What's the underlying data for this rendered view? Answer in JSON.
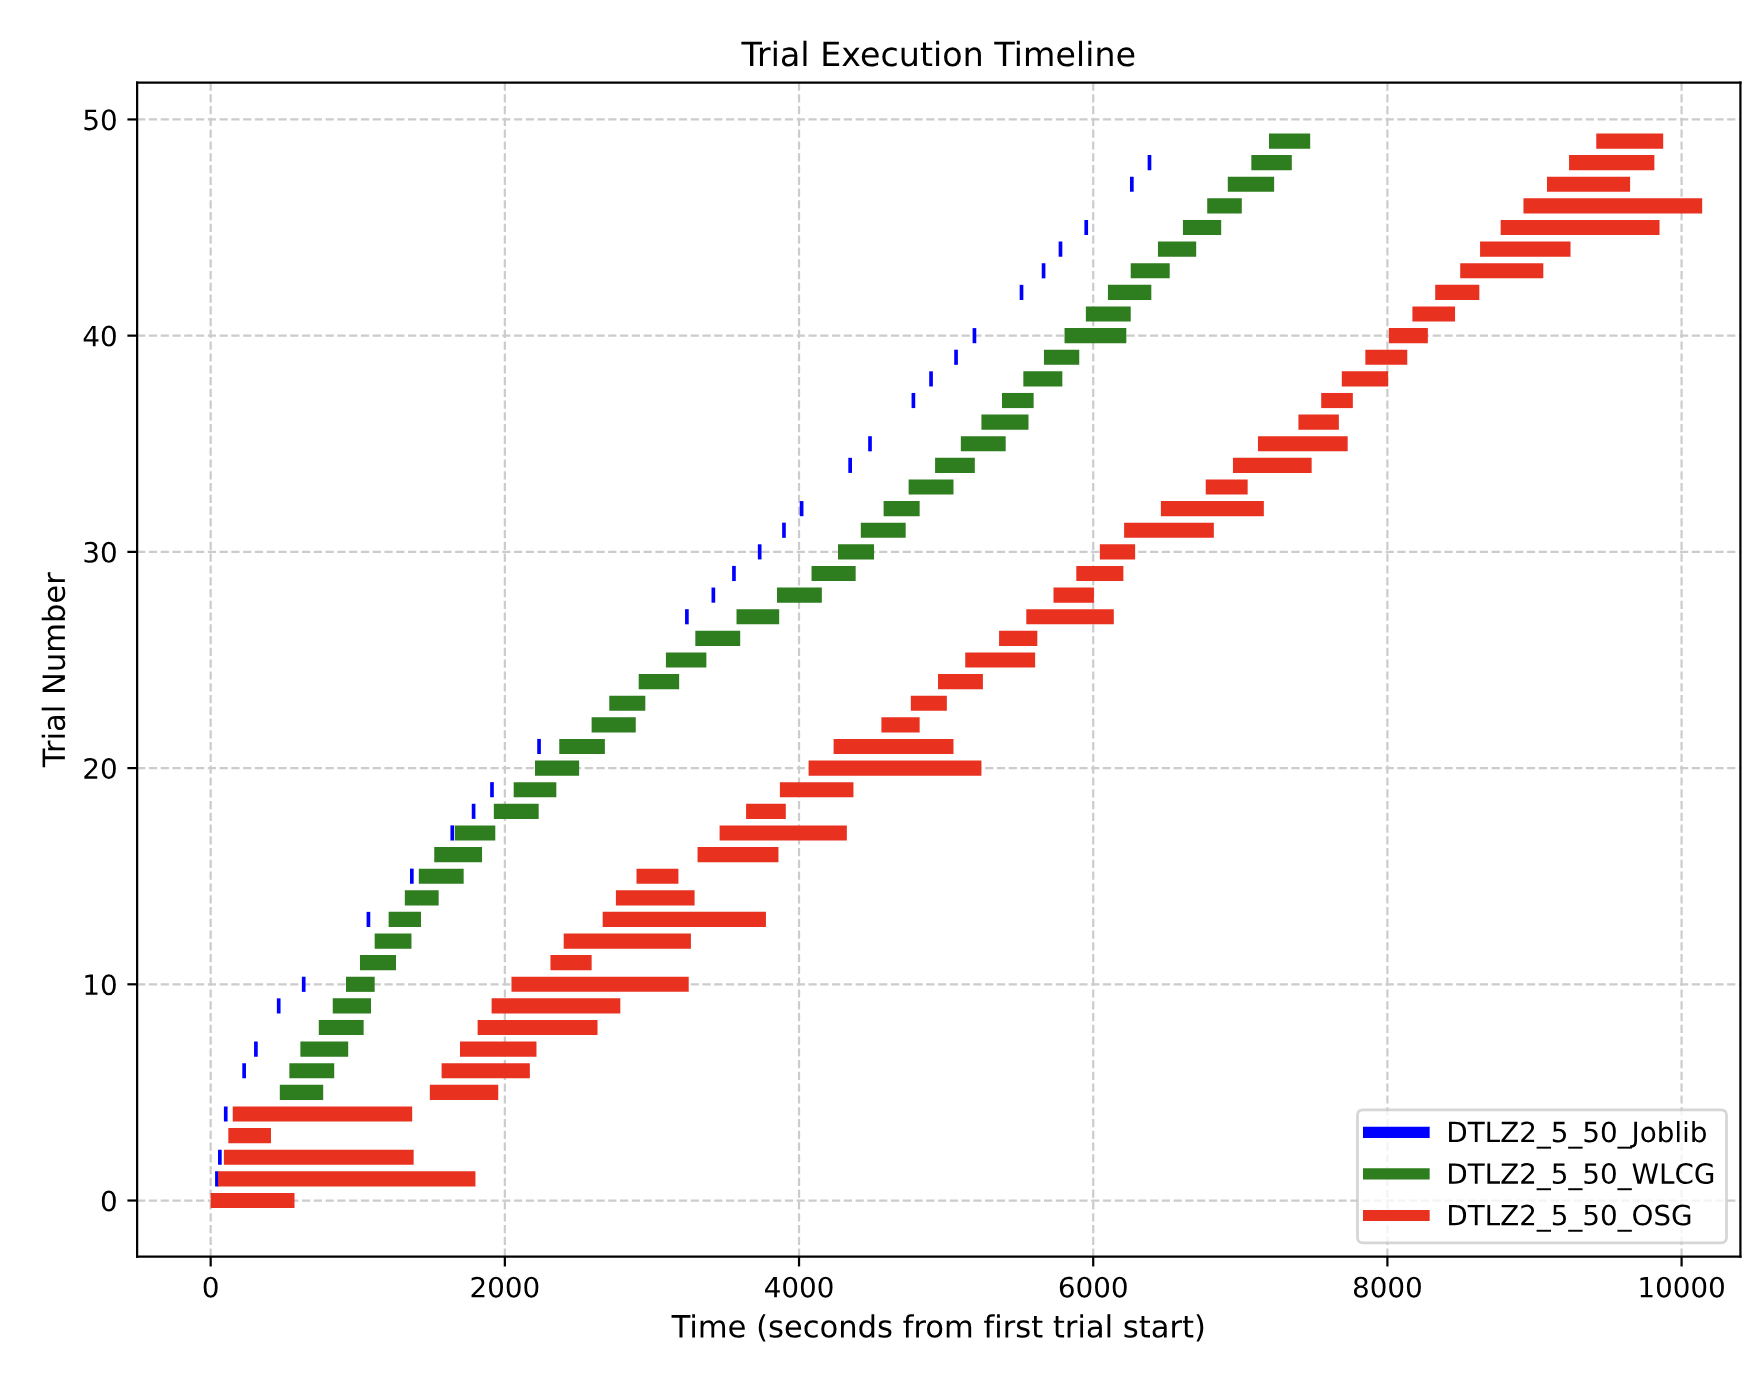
{
  "chart_data": {
    "type": "bar",
    "orientation": "horizontal",
    "title": "Trial Execution Timeline",
    "xlabel": "Time (seconds from first trial start)",
    "ylabel": "Trial Number",
    "x": [
      0,
      1,
      2,
      3,
      4,
      5,
      6,
      7,
      8,
      9,
      10,
      11,
      12,
      13,
      14,
      15,
      16,
      17,
      18,
      19,
      20,
      21,
      22,
      23,
      24,
      25,
      26,
      27,
      28,
      29,
      30,
      31,
      32,
      33,
      34,
      35,
      36,
      37,
      38,
      39,
      40,
      41,
      42,
      43,
      44,
      45,
      46,
      47,
      48,
      49
    ],
    "xlim": [
      -500,
      10400
    ],
    "xticks": [
      0,
      2000,
      4000,
      6000,
      8000,
      10000
    ],
    "ylim": [
      -2.6,
      51.7
    ],
    "yticks": [
      0,
      10,
      20,
      30,
      40,
      50
    ],
    "grid": true,
    "legend": "bottom right",
    "series": [
      {
        "name": "DTLZ2_5_50_Joblib",
        "color": "#0000ff",
        "base": [
          null,
          30,
          50,
          null,
          90,
          null,
          215,
          295,
          null,
          450,
          620,
          null,
          null,
          1060,
          null,
          1355,
          null,
          1630,
          1775,
          1900,
          null,
          2220,
          null,
          null,
          null,
          null,
          null,
          3225,
          3405,
          3545,
          3720,
          3885,
          4005,
          null,
          4335,
          4470,
          null,
          4765,
          4885,
          5055,
          5180,
          null,
          5500,
          5650,
          5765,
          5940,
          null,
          6250,
          6370,
          null
        ],
        "values": [
          null,
          25,
          25,
          null,
          25,
          null,
          25,
          25,
          null,
          25,
          25,
          null,
          null,
          25,
          null,
          25,
          null,
          25,
          25,
          25,
          null,
          25,
          null,
          null,
          null,
          null,
          null,
          25,
          25,
          25,
          25,
          25,
          25,
          null,
          25,
          25,
          null,
          25,
          25,
          25,
          25,
          null,
          25,
          25,
          25,
          25,
          null,
          25,
          25,
          null
        ]
      },
      {
        "name": "DTLZ2_5_50_WLCG",
        "color": "#2e7d1e",
        "base": [
          null,
          null,
          null,
          null,
          null,
          470,
          535,
          610,
          735,
          830,
          920,
          1015,
          1115,
          1210,
          1320,
          1415,
          1520,
          1660,
          1925,
          2060,
          2205,
          2370,
          2590,
          2710,
          2910,
          3095,
          3295,
          3575,
          3850,
          4085,
          4265,
          4420,
          4575,
          4745,
          4925,
          5100,
          5240,
          5380,
          5525,
          5665,
          5805,
          5950,
          6100,
          6255,
          6440,
          6610,
          6775,
          6915,
          7075,
          7195
        ],
        "values": [
          null,
          null,
          null,
          null,
          null,
          295,
          305,
          325,
          305,
          260,
          195,
          245,
          250,
          220,
          230,
          305,
          325,
          275,
          305,
          290,
          300,
          310,
          300,
          245,
          275,
          275,
          305,
          290,
          305,
          300,
          245,
          305,
          245,
          305,
          270,
          305,
          320,
          215,
          265,
          240,
          420,
          305,
          295,
          265,
          260,
          260,
          235,
          315,
          275,
          280
        ]
      },
      {
        "name": "DTLZ2_5_50_OSG",
        "color": "#e8321f",
        "base": [
          0,
          50,
          90,
          120,
          150,
          1490,
          1570,
          1695,
          1815,
          1910,
          2045,
          2310,
          2400,
          2665,
          2755,
          2895,
          3310,
          3460,
          3640,
          3870,
          4065,
          4235,
          4560,
          4760,
          4945,
          5130,
          5360,
          5545,
          5730,
          5885,
          6045,
          6210,
          6460,
          6765,
          6950,
          7120,
          7395,
          7550,
          7690,
          7850,
          8010,
          8170,
          8325,
          8495,
          8630,
          8770,
          8925,
          9085,
          9235,
          9420
        ],
        "values": [
          570,
          1750,
          1290,
          290,
          1220,
          465,
          600,
          520,
          815,
          875,
          1205,
          280,
          865,
          1110,
          535,
          285,
          550,
          865,
          270,
          500,
          1175,
          815,
          260,
          245,
          305,
          475,
          260,
          595,
          275,
          320,
          240,
          610,
          700,
          285,
          535,
          610,
          275,
          215,
          315,
          285,
          265,
          290,
          300,
          565,
          615,
          1080,
          1215,
          565,
          580,
          455
        ]
      }
    ]
  }
}
